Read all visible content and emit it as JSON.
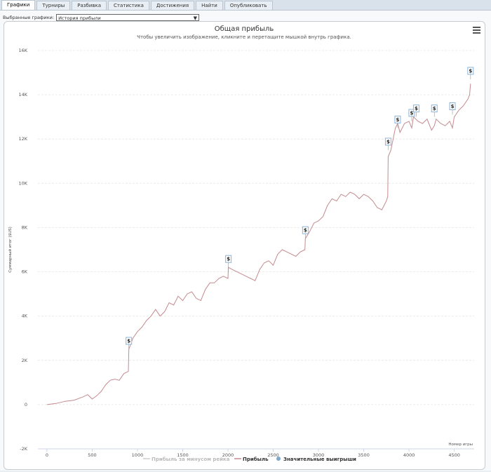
{
  "tabs": [
    {
      "label": "Графики",
      "active": true
    },
    {
      "label": "Турниры",
      "active": false
    },
    {
      "label": "Разбивка",
      "active": false
    },
    {
      "label": "Статистика",
      "active": false
    },
    {
      "label": "Достижения",
      "active": false
    },
    {
      "label": "Найти",
      "active": false
    },
    {
      "label": "Опубликовать",
      "active": false
    }
  ],
  "selector": {
    "label": "Выбранные графики:",
    "value": "История прибыли"
  },
  "chart_data": {
    "type": "line",
    "title": "Общая прибыль",
    "subtitle": "Чтобы увеличить изображение, кликните и перетащите мышкой внутрь графика.",
    "xlabel": "Номер игры",
    "ylabel": "Суммарный итог ($US)",
    "xlim": [
      -100,
      4720
    ],
    "ylim": [
      -2000,
      16000
    ],
    "xticks": [
      0,
      500,
      1000,
      1500,
      2000,
      2500,
      3000,
      3500,
      4000,
      4500
    ],
    "yticks": [
      {
        "value": -2000,
        "label": "-2K"
      },
      {
        "value": 0,
        "label": "0"
      },
      {
        "value": 2000,
        "label": "2K"
      },
      {
        "value": 4000,
        "label": "4K"
      },
      {
        "value": 6000,
        "label": "6K"
      },
      {
        "value": 8000,
        "label": "8K"
      },
      {
        "value": 10000,
        "label": "10K"
      },
      {
        "value": 12000,
        "label": "12K"
      },
      {
        "value": 14000,
        "label": "14K"
      },
      {
        "value": 16000,
        "label": "16K"
      }
    ],
    "grid": true,
    "colors": {
      "profit": "#c48a8f",
      "markers": "#7fa8c9",
      "nonshowdown": "#cccccc"
    },
    "legend": {
      "position": "bottom",
      "items": [
        {
          "name": "Прибыль за минусом рейка",
          "color": "#cccccc",
          "marker": "line"
        },
        {
          "name": "Прибыль",
          "color": "#c48a8f",
          "marker": "line"
        },
        {
          "name": "Значительные выигрыши",
          "color": "#7fa8c9",
          "marker": "circle"
        }
      ]
    },
    "series": [
      {
        "name": "Прибыль",
        "x": [
          0,
          100,
          200,
          300,
          400,
          450,
          500,
          550,
          600,
          650,
          700,
          750,
          800,
          850,
          900,
          905,
          950,
          1000,
          1050,
          1100,
          1150,
          1200,
          1250,
          1300,
          1350,
          1400,
          1450,
          1500,
          1550,
          1600,
          1650,
          1700,
          1750,
          1800,
          1850,
          1900,
          1950,
          2000,
          2005,
          2050,
          2100,
          2150,
          2200,
          2250,
          2300,
          2350,
          2400,
          2450,
          2500,
          2550,
          2600,
          2650,
          2700,
          2750,
          2800,
          2850,
          2855,
          2900,
          2950,
          3000,
          3050,
          3100,
          3150,
          3200,
          3250,
          3300,
          3350,
          3400,
          3450,
          3500,
          3550,
          3600,
          3650,
          3700,
          3750,
          3765,
          3770,
          3800,
          3850,
          3875,
          3900,
          3950,
          4000,
          4030,
          4050,
          4100,
          4150,
          4200,
          4250,
          4280,
          4300,
          4350,
          4400,
          4450,
          4480,
          4500,
          4550,
          4600,
          4650,
          4670,
          4680
        ],
        "y": [
          0,
          50,
          150,
          200,
          350,
          450,
          250,
          400,
          600,
          900,
          1100,
          1150,
          1100,
          1400,
          1500,
          2500,
          3000,
          3300,
          3500,
          3800,
          4000,
          4300,
          4000,
          4200,
          4600,
          4500,
          4900,
          4700,
          5000,
          5100,
          4800,
          4700,
          5200,
          5500,
          5500,
          5700,
          5800,
          5700,
          6200,
          6100,
          6000,
          5900,
          5800,
          5700,
          5600,
          6100,
          6400,
          6500,
          6300,
          6800,
          7000,
          6900,
          6800,
          6700,
          6900,
          7000,
          7500,
          7800,
          8200,
          8300,
          8500,
          9000,
          9300,
          9200,
          9500,
          9400,
          9600,
          9500,
          9300,
          9500,
          9400,
          9200,
          8900,
          8800,
          9200,
          9400,
          11200,
          11500,
          12500,
          12700,
          12300,
          12700,
          12800,
          12500,
          13000,
          12800,
          12700,
          12900,
          12400,
          12600,
          12900,
          12700,
          12600,
          12800,
          12500,
          13000,
          13300,
          13500,
          13800,
          14000,
          14500
        ]
      }
    ],
    "markers": {
      "name": "Значительные выигрыши",
      "label": "$",
      "x": [
        905,
        2005,
        2855,
        3770,
        3875,
        4030,
        4080,
        4280,
        4480,
        4680
      ],
      "y": [
        2500,
        6200,
        7500,
        11500,
        12500,
        12800,
        13000,
        13000,
        13100,
        14700
      ]
    }
  }
}
